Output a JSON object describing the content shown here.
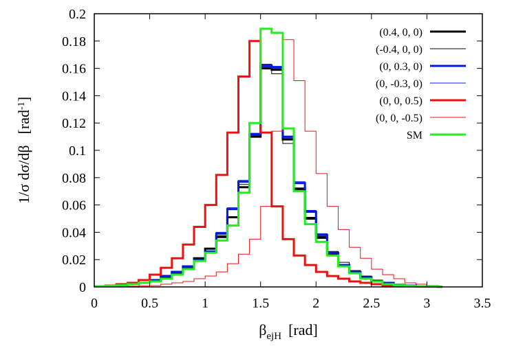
{
  "chart_data": {
    "type": "line",
    "style": "histogram-steps",
    "xlabel": "β",
    "xlabel_sub": "ejH",
    "xlabel_unit": "[rad]",
    "ylabel": "1/σ dσ/dβ",
    "ylabel_unit_prefix": "[rad",
    "ylabel_unit_exp": "-1",
    "ylabel_unit_suffix": "]",
    "xlim": [
      0,
      3.5
    ],
    "ylim": [
      0,
      0.2
    ],
    "xticks": [
      0,
      0.5,
      1,
      1.5,
      2,
      2.5,
      3,
      3.5
    ],
    "yticks": [
      0,
      0.02,
      0.04,
      0.06,
      0.08,
      0.1,
      0.12,
      0.14,
      0.16,
      0.18,
      0.2
    ],
    "xtick_labels": [
      "0",
      "0.5",
      "1",
      "1.5",
      "2",
      "2.5",
      "3",
      "3.5"
    ],
    "ytick_labels": [
      "0",
      "0.02",
      "0.04",
      "0.06",
      "0.08",
      "0.1",
      "0.12",
      "0.14",
      "0.16",
      "0.18",
      "0.2"
    ],
    "grid": false,
    "legend_position": "top-right",
    "bin_edges": [
      0,
      0.1,
      0.2,
      0.3,
      0.4,
      0.5,
      0.6,
      0.7,
      0.8,
      0.9,
      1.0,
      1.1,
      1.2,
      1.3,
      1.4,
      1.5,
      1.6,
      1.7,
      1.8,
      1.9,
      2.0,
      2.1,
      2.2,
      2.3,
      2.4,
      2.5,
      2.6,
      2.7,
      2.8,
      2.9,
      3.0,
      3.1,
      3.14
    ],
    "series": [
      {
        "name": "(0.4, 0, 0)",
        "color": "#000000",
        "width": 3,
        "values": [
          0.0005,
          0.001,
          0.0015,
          0.002,
          0.003,
          0.005,
          0.008,
          0.011,
          0.015,
          0.021,
          0.028,
          0.037,
          0.051,
          0.073,
          0.11,
          0.16,
          0.159,
          0.108,
          0.072,
          0.05,
          0.036,
          0.024,
          0.016,
          0.011,
          0.007,
          0.004,
          0.003,
          0.0015,
          0.001,
          0.0005,
          0.0003,
          0.0001
        ]
      },
      {
        "name": "(-0.4, 0, 0)",
        "color": "#000000",
        "width": 1,
        "values": [
          0.0005,
          0.001,
          0.0015,
          0.002,
          0.003,
          0.005,
          0.007,
          0.01,
          0.014,
          0.019,
          0.026,
          0.036,
          0.051,
          0.075,
          0.111,
          0.163,
          0.156,
          0.105,
          0.071,
          0.051,
          0.037,
          0.026,
          0.018,
          0.012,
          0.008,
          0.005,
          0.003,
          0.0015,
          0.001,
          0.0005,
          0.0003,
          0.0001
        ]
      },
      {
        "name": "(0, 0.3, 0)",
        "color": "#0018e0",
        "width": 3,
        "values": [
          0.0005,
          0.001,
          0.0015,
          0.002,
          0.003,
          0.005,
          0.008,
          0.011,
          0.015,
          0.02,
          0.026,
          0.039,
          0.057,
          0.077,
          0.112,
          0.162,
          0.161,
          0.11,
          0.076,
          0.055,
          0.038,
          0.025,
          0.016,
          0.011,
          0.007,
          0.004,
          0.003,
          0.0015,
          0.001,
          0.0005,
          0.0003,
          0.0001
        ]
      },
      {
        "name": "(0, -0.3, 0)",
        "color": "#0018e0",
        "width": 1,
        "values": [
          0.0005,
          0.001,
          0.0015,
          0.002,
          0.003,
          0.005,
          0.008,
          0.011,
          0.015,
          0.02,
          0.026,
          0.04,
          0.058,
          0.078,
          0.111,
          0.161,
          0.16,
          0.109,
          0.077,
          0.056,
          0.039,
          0.025,
          0.016,
          0.011,
          0.007,
          0.004,
          0.003,
          0.0015,
          0.001,
          0.0005,
          0.0003,
          0.0001
        ]
      },
      {
        "name": "(0, 0, 0.5)",
        "color": "#ee1111",
        "width": 3,
        "values": [
          0.0005,
          0.001,
          0.002,
          0.003,
          0.005,
          0.009,
          0.014,
          0.021,
          0.031,
          0.044,
          0.06,
          0.082,
          0.113,
          0.154,
          0.18,
          0.113,
          0.059,
          0.035,
          0.023,
          0.016,
          0.011,
          0.008,
          0.006,
          0.004,
          0.003,
          0.002,
          0.001,
          0.0008,
          0.0005,
          0.0003,
          0.0002,
          0.0001
        ]
      },
      {
        "name": "(0, 0, -0.5)",
        "color": "#ee1111",
        "width": 1,
        "values": [
          0.0001,
          0.0002,
          0.0003,
          0.0005,
          0.0008,
          0.001,
          0.002,
          0.003,
          0.004,
          0.006,
          0.008,
          0.011,
          0.017,
          0.024,
          0.035,
          0.059,
          0.114,
          0.181,
          0.151,
          0.114,
          0.083,
          0.059,
          0.042,
          0.029,
          0.021,
          0.013,
          0.009,
          0.006,
          0.003,
          0.002,
          0.001,
          0.0005
        ]
      },
      {
        "name": "SM",
        "color": "#22ee22",
        "width": 3,
        "values": [
          0.0005,
          0.0008,
          0.0012,
          0.002,
          0.003,
          0.004,
          0.006,
          0.009,
          0.013,
          0.019,
          0.025,
          0.034,
          0.045,
          0.069,
          0.12,
          0.189,
          0.186,
          0.116,
          0.07,
          0.046,
          0.033,
          0.023,
          0.015,
          0.01,
          0.006,
          0.004,
          0.002,
          0.0012,
          0.0008,
          0.0005,
          0.0003,
          0.0001
        ]
      }
    ]
  }
}
